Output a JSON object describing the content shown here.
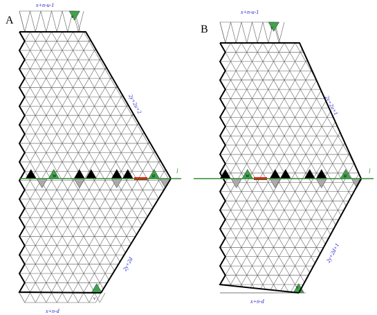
{
  "panels": [
    {
      "id": "A",
      "letter": "A",
      "top_label": "x+n-u-1",
      "bottom_label": "x+n-d",
      "upper_side_label": "2y+2u+2",
      "lower_side_label": "2y+2d",
      "line_label": "l",
      "mark_top": "v",
      "mark_bottom": "v",
      "mark_w": "w",
      "mark_u": "u"
    },
    {
      "id": "B",
      "letter": "B",
      "top_label": "x+n-u-1",
      "bottom_label": "x+n-d",
      "upper_side_label": "2y+2u+1",
      "lower_side_label": "2y+2d+1",
      "line_label": "l",
      "mark_top": "v",
      "mark_bottom": "v",
      "mark_w": "w",
      "mark_u": "u"
    }
  ],
  "colors": {
    "grid": "#555555",
    "outline": "#000000",
    "axis": "#2e8b2e",
    "green_tile": "#3fa34d",
    "black_tile": "#000000",
    "gray_tile": "#aaaaaa",
    "red_segment": "#ff0000",
    "label_blue": "#2222cc"
  }
}
